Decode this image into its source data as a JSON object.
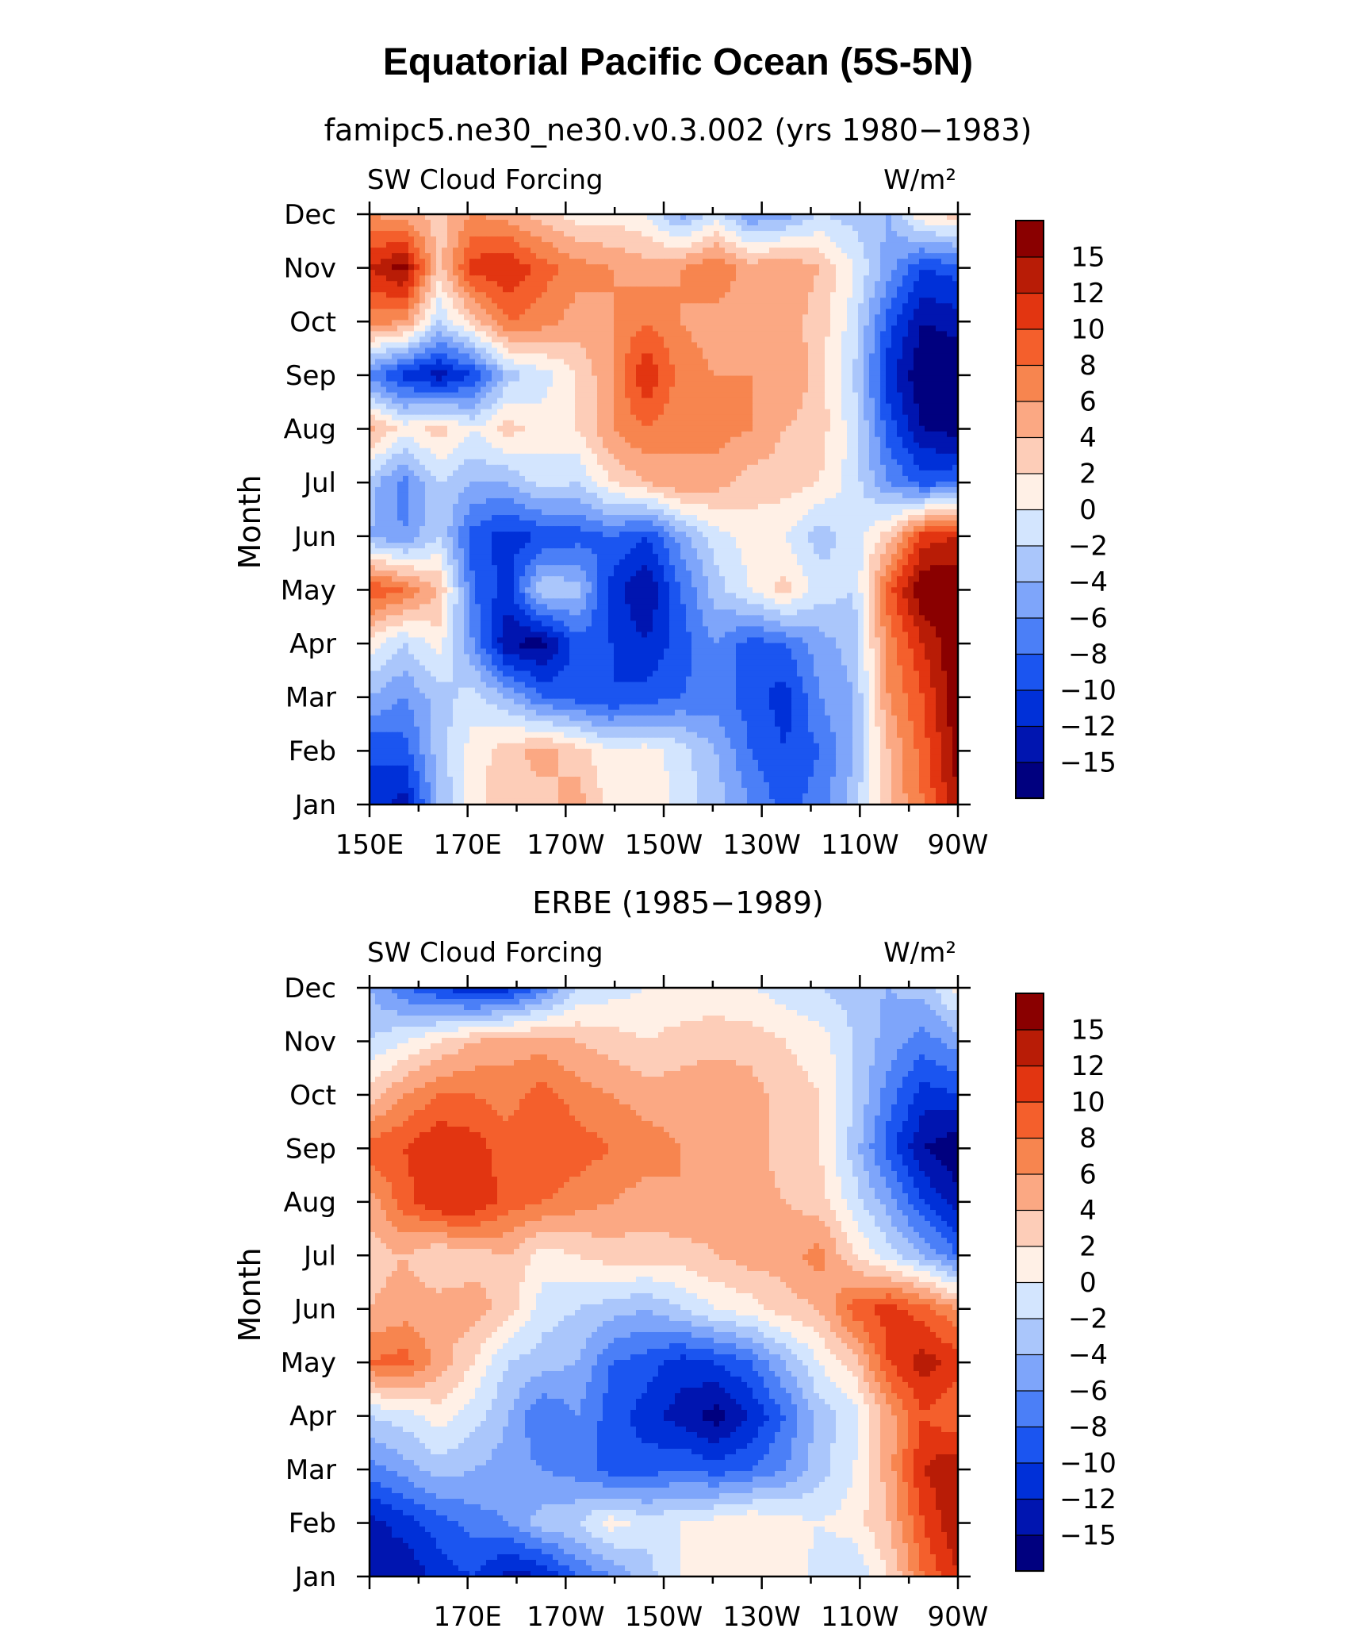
{
  "chart_data": {
    "type": "heatmap",
    "title": "Equatorial Pacific Ocean (5S-5N)",
    "colorbar_colors": [
      "#00007f",
      "#0015b0",
      "#0030d8",
      "#1b55f0",
      "#4b7ff7",
      "#7ea5fa",
      "#aac6fb",
      "#d3e5fe",
      "#fff0e6",
      "#fdcdb8",
      "#fba883",
      "#f7854f",
      "#f45f2c",
      "#e23511",
      "#b81c06",
      "#8a0000"
    ],
    "colorbar_labels": [
      "15",
      "12",
      "10",
      "8",
      "6",
      "4",
      "2",
      "0",
      "−2",
      "−4",
      "−6",
      "−8",
      "−10",
      "−12",
      "−15"
    ],
    "zlim": [
      -16,
      16
    ],
    "panels": [
      {
        "subtitle": "famipc5.ne30_ne30.v0.3.002 (yrs 1980−1983)",
        "left_label": "SW Cloud Forcing",
        "right_label": "W/m²",
        "ylabel": "Month",
        "y_ticks": [
          "Jan",
          "Feb",
          "Mar",
          "Apr",
          "May",
          "Jun",
          "Jul",
          "Aug",
          "Sep",
          "Oct",
          "Nov",
          "Dec"
        ],
        "x_ticks": [
          "150E",
          "170E",
          "170W",
          "150W",
          "130W",
          "110W",
          "90W"
        ],
        "x_range_deg": [
          150,
          270
        ],
        "grid": false,
        "field": [
          [
            -10,
            -13,
            -4,
            1,
            4,
            3,
            5,
            1,
            2,
            -1,
            -3,
            -6,
            -9,
            -7,
            -3,
            4,
            8,
            14
          ],
          [
            -10,
            -9,
            -3,
            1,
            3,
            5,
            3,
            0,
            1,
            -1,
            -4,
            -8,
            -10,
            -8,
            -4,
            4,
            9,
            15
          ],
          [
            -4,
            -6,
            -3,
            -1,
            -4,
            -8,
            -9,
            -10,
            -9,
            -8,
            -7,
            -9,
            -11,
            -6,
            -4,
            6,
            10,
            16
          ],
          [
            1,
            -2,
            1,
            -6,
            -14,
            -15,
            -9,
            -10,
            -12,
            -9,
            -6,
            -9,
            -8,
            -5,
            -3,
            7,
            12,
            16
          ],
          [
            10,
            8,
            4,
            -8,
            -11,
            -2,
            -3,
            -11,
            -14,
            -8,
            -3,
            0,
            3,
            -1,
            -2,
            9,
            16,
            16
          ],
          [
            -4,
            -6,
            -2,
            -9,
            -11,
            -10,
            -9,
            -8,
            -10,
            -5,
            -1,
            1,
            0,
            -3,
            -1,
            3,
            11,
            12
          ],
          [
            -3,
            -7,
            -2,
            -4,
            -4,
            -1,
            -2,
            2,
            4,
            6,
            5,
            3,
            3,
            2,
            -1,
            -6,
            -9,
            -8
          ],
          [
            5,
            1,
            3,
            0,
            3,
            1,
            2,
            6,
            8,
            6,
            7,
            6,
            4,
            3,
            -1,
            -9,
            -14,
            -15
          ],
          [
            -7,
            -11,
            -13,
            -10,
            -3,
            -1,
            2,
            6,
            12,
            7,
            6,
            6,
            6,
            3,
            -2,
            -11,
            -16,
            -16
          ],
          [
            7,
            6,
            -2,
            3,
            8,
            7,
            5,
            6,
            8,
            6,
            5,
            4,
            5,
            3,
            -1,
            -9,
            -14,
            -13
          ],
          [
            12,
            15,
            3,
            11,
            12,
            9,
            7,
            6,
            5,
            6,
            8,
            5,
            6,
            4,
            0,
            -5,
            -10,
            -9
          ],
          [
            6,
            5,
            3,
            6,
            5,
            3,
            1,
            1,
            0,
            -5,
            -1,
            -6,
            -5,
            -2,
            -3,
            -4,
            2,
            3
          ]
        ]
      },
      {
        "subtitle": "ERBE (1985−1989)",
        "left_label": "SW Cloud Forcing",
        "right_label": "W/m²",
        "ylabel": "Month",
        "y_ticks": [
          "Jan",
          "Feb",
          "Mar",
          "Apr",
          "May",
          "Jun",
          "Jul",
          "Aug",
          "Sep",
          "Oct",
          "Nov",
          "Dec"
        ],
        "x_ticks": [
          "170E",
          "170W",
          "150W",
          "130W",
          "110W",
          "90W"
        ],
        "x_range_deg": [
          150,
          270
        ],
        "grid": false,
        "field": [
          [
            -12,
            -14,
            -11,
            -10,
            -13,
            -12,
            -8,
            -6,
            -3,
            0,
            0,
            1,
            2,
            -1,
            -2,
            2,
            8,
            12
          ],
          [
            -13,
            -11,
            -9,
            -7,
            -6,
            -3,
            -2,
            1,
            -1,
            0,
            1,
            2,
            1,
            0,
            1,
            4,
            10,
            14
          ],
          [
            -7,
            -5,
            -3,
            -4,
            -5,
            -6,
            -7,
            -9,
            -9,
            -8,
            -9,
            -8,
            -6,
            -3,
            0,
            5,
            12,
            14
          ],
          [
            -2,
            -1,
            1,
            -1,
            -4,
            -8,
            -6,
            -9,
            -11,
            -13,
            -15,
            -12,
            -8,
            -3,
            -1,
            5,
            10,
            8
          ],
          [
            8,
            9,
            5,
            2,
            -2,
            -3,
            -4,
            -8,
            -9,
            -11,
            -10,
            -8,
            -4,
            0,
            3,
            10,
            13,
            11
          ],
          [
            4,
            5,
            5,
            5,
            3,
            -1,
            -2,
            -3,
            -4,
            -2,
            0,
            1,
            3,
            4,
            9,
            11,
            9,
            6
          ],
          [
            3,
            4,
            2,
            3,
            4,
            1,
            2,
            3,
            3,
            3,
            4,
            5,
            5,
            7,
            2,
            -1,
            -4,
            -8
          ],
          [
            5,
            9,
            12,
            12,
            9,
            8,
            7,
            6,
            5,
            6,
            5,
            5,
            4,
            3,
            -1,
            -5,
            -10,
            -13
          ],
          [
            9,
            10,
            12,
            11,
            9,
            10,
            9,
            8,
            7,
            6,
            6,
            5,
            3,
            2,
            -3,
            -9,
            -14,
            -16
          ],
          [
            3,
            6,
            8,
            8,
            7,
            9,
            7,
            6,
            5,
            5,
            6,
            5,
            3,
            2,
            -2,
            -7,
            -11,
            -10
          ],
          [
            -2,
            0,
            2,
            4,
            5,
            5,
            4,
            3,
            2,
            3,
            3,
            3,
            2,
            1,
            -2,
            -5,
            -7,
            -5
          ],
          [
            -4,
            -8,
            -10,
            -12,
            -11,
            -7,
            -2,
            -1,
            0,
            0,
            1,
            0,
            -1,
            -2,
            -3,
            -4,
            -3,
            1
          ]
        ]
      }
    ]
  }
}
